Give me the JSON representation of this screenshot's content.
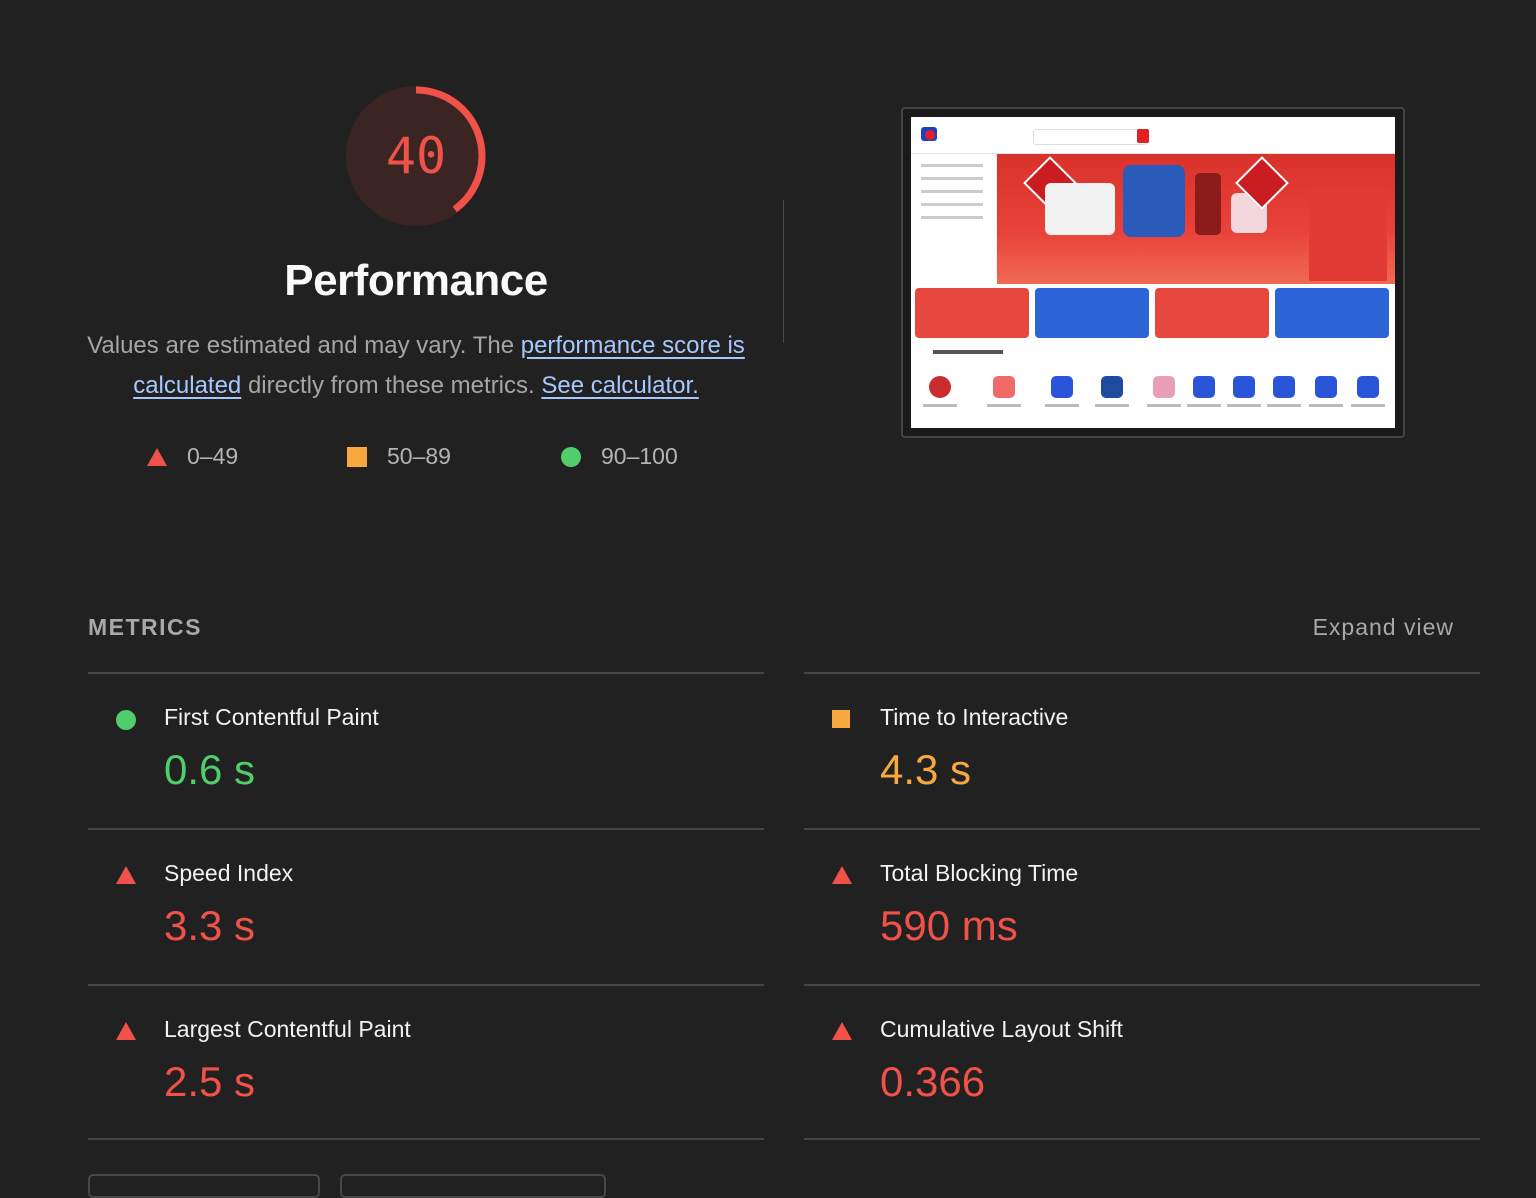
{
  "gauge": {
    "score": "40",
    "fraction": 0.4,
    "color": "#f0524a"
  },
  "summary": {
    "title": "Performance",
    "desc_before": "Values are estimated and may vary. The ",
    "link_score": "performance score is calculated",
    "desc_middle": " directly from these metrics. ",
    "link_calc": "See calculator."
  },
  "legend": [
    {
      "icon": "triangle",
      "label": "0–49",
      "color": "#f0524a"
    },
    {
      "icon": "square",
      "label": "50–89",
      "color": "#f7a93f"
    },
    {
      "icon": "circle",
      "label": "90–100",
      "color": "#4fce6b"
    }
  ],
  "metrics": {
    "header": "METRICS",
    "expand_label": "Expand view",
    "items": [
      {
        "name": "First Contentful Paint",
        "value": "0.6 s",
        "rating": "green"
      },
      {
        "name": "Time to Interactive",
        "value": "4.3 s",
        "rating": "orange"
      },
      {
        "name": "Speed Index",
        "value": "3.3 s",
        "rating": "red"
      },
      {
        "name": "Total Blocking Time",
        "value": "590 ms",
        "rating": "red"
      },
      {
        "name": "Largest Contentful Paint",
        "value": "2.5 s",
        "rating": "red"
      },
      {
        "name": "Cumulative Layout Shift",
        "value": "0.366",
        "rating": "red"
      }
    ]
  }
}
